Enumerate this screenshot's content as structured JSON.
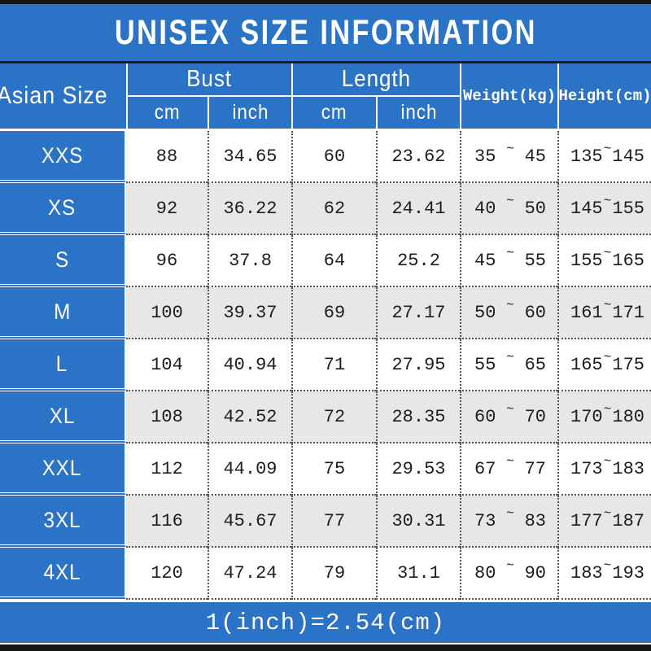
{
  "banner": {
    "title": "UNISEX SIZE INFORMATION"
  },
  "colors": {
    "blue": "#2b73c6",
    "row_alt_gray": "#e7e7e7",
    "border_dotted": "#555555",
    "bar_black": "#151515",
    "text_dark": "#1d1d1d",
    "text_white": "#ffffff"
  },
  "table": {
    "corner_header": "Asian Size",
    "group_headers": [
      "Bust",
      "Length"
    ],
    "sub_headers": [
      "cm",
      "inch",
      "cm",
      "inch"
    ],
    "span_headers": [
      "Weight(kg)",
      "Height(cm)"
    ],
    "tilde": "~",
    "rows": [
      {
        "size": "XXS",
        "bust_cm": "88",
        "bust_inch": "34.65",
        "length_cm": "60",
        "length_inch": "23.62",
        "weight_min": "35",
        "weight_max": "45",
        "height_min": "135",
        "height_max": "145"
      },
      {
        "size": "XS",
        "bust_cm": "92",
        "bust_inch": "36.22",
        "length_cm": "62",
        "length_inch": "24.41",
        "weight_min": "40",
        "weight_max": "50",
        "height_min": "145",
        "height_max": "155"
      },
      {
        "size": "S",
        "bust_cm": "96",
        "bust_inch": "37.8",
        "length_cm": "64",
        "length_inch": "25.2",
        "weight_min": "45",
        "weight_max": "55",
        "height_min": "155",
        "height_max": "165"
      },
      {
        "size": "M",
        "bust_cm": "100",
        "bust_inch": "39.37",
        "length_cm": "69",
        "length_inch": "27.17",
        "weight_min": "50",
        "weight_max": "60",
        "height_min": "161",
        "height_max": "171"
      },
      {
        "size": "L",
        "bust_cm": "104",
        "bust_inch": "40.94",
        "length_cm": "71",
        "length_inch": "27.95",
        "weight_min": "55",
        "weight_max": "65",
        "height_min": "165",
        "height_max": "175"
      },
      {
        "size": "XL",
        "bust_cm": "108",
        "bust_inch": "42.52",
        "length_cm": "72",
        "length_inch": "28.35",
        "weight_min": "60",
        "weight_max": "70",
        "height_min": "170",
        "height_max": "180"
      },
      {
        "size": "XXL",
        "bust_cm": "112",
        "bust_inch": "44.09",
        "length_cm": "75",
        "length_inch": "29.53",
        "weight_min": "67",
        "weight_max": "77",
        "height_min": "173",
        "height_max": "183"
      },
      {
        "size": "3XL",
        "bust_cm": "116",
        "bust_inch": "45.67",
        "length_cm": "77",
        "length_inch": "30.31",
        "weight_min": "73",
        "weight_max": "83",
        "height_min": "177",
        "height_max": "187"
      },
      {
        "size": "4XL",
        "bust_cm": "120",
        "bust_inch": "47.24",
        "length_cm": "79",
        "length_inch": "31.1",
        "weight_min": "80",
        "weight_max": "90",
        "height_min": "183",
        "height_max": "193"
      }
    ]
  },
  "footer": {
    "note": "1(inch)=2.54(cm)"
  },
  "chart_data": {
    "type": "table",
    "title": "UNISEX SIZE INFORMATION",
    "columns": [
      "Asian Size",
      "Bust (cm)",
      "Bust (inch)",
      "Length (cm)",
      "Length (inch)",
      "Weight (kg)",
      "Height (cm)"
    ],
    "rows": [
      [
        "XXS",
        88,
        34.65,
        60,
        23.62,
        "35~45",
        "135~145"
      ],
      [
        "XS",
        92,
        36.22,
        62,
        24.41,
        "40~50",
        "145~155"
      ],
      [
        "S",
        96,
        37.8,
        64,
        25.2,
        "45~55",
        "155~165"
      ],
      [
        "M",
        100,
        39.37,
        69,
        27.17,
        "50~60",
        "161~171"
      ],
      [
        "L",
        104,
        40.94,
        71,
        27.95,
        "55~65",
        "165~175"
      ],
      [
        "XL",
        108,
        42.52,
        72,
        28.35,
        "60~70",
        "170~180"
      ],
      [
        "XXL",
        112,
        44.09,
        75,
        29.53,
        "67~77",
        "173~183"
      ],
      [
        "3XL",
        116,
        45.67,
        77,
        30.31,
        "73~83",
        "177~187"
      ],
      [
        "4XL",
        120,
        47.24,
        79,
        31.1,
        "80~90",
        "183~193"
      ]
    ],
    "note": "1(inch)=2.54(cm)",
    "layout": {
      "alt_row_shading": "every second data row light gray",
      "header_style": "blue with white text"
    }
  }
}
